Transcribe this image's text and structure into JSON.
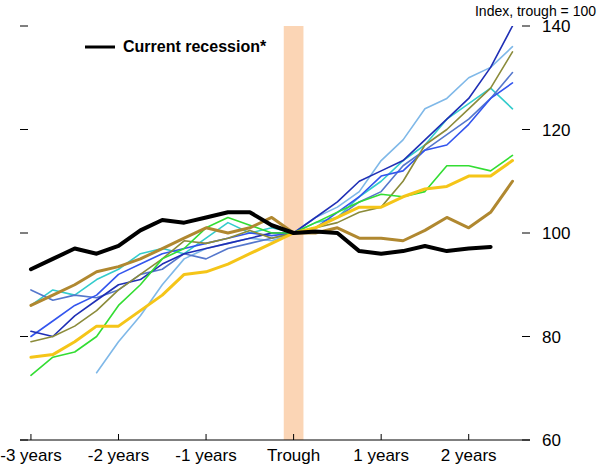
{
  "chart_data": {
    "type": "line",
    "title": "Index, trough = 100",
    "x": [
      -12,
      -11,
      -10,
      -9,
      -8,
      -7,
      -6,
      -5,
      -4,
      -3,
      -2,
      -1,
      0,
      1,
      2,
      3,
      4,
      5,
      6,
      7,
      8,
      9,
      10
    ],
    "xlim": [
      -12.5,
      10.8
    ],
    "xticks": [
      {
        "value": -12,
        "label": "-3 years"
      },
      {
        "value": -8,
        "label": "-2 years"
      },
      {
        "value": -4,
        "label": "-1 years"
      },
      {
        "value": 0,
        "label": "Trough"
      },
      {
        "value": 4,
        "label": "1 years"
      },
      {
        "value": 8,
        "label": "2 years"
      }
    ],
    "ylim": [
      60,
      140
    ],
    "yticks": [
      60,
      80,
      100,
      120,
      140
    ],
    "grid": false,
    "legend": "upper left",
    "shaded_regions": [
      {
        "start": -0.45,
        "end": 0.45,
        "color": "#fbd5b5"
      }
    ],
    "series": [
      {
        "color": "#33cccc",
        "values": [
          86,
          89,
          88,
          91,
          93,
          96,
          97,
          96,
          99,
          102,
          100,
          101,
          100,
          102,
          103,
          107,
          110,
          114,
          117,
          122,
          125,
          128,
          124
        ]
      },
      {
        "color": "#7fb8e8",
        "values": [
          null,
          null,
          null,
          73,
          79,
          84,
          90,
          95,
          97,
          98,
          99,
          98.5,
          100,
          103,
          105,
          108,
          114,
          118,
          124,
          126,
          130,
          132,
          136
        ]
      },
      {
        "color": "#5577cc",
        "values": [
          89,
          87,
          88,
          87.5,
          89,
          92,
          93,
          96,
          95,
          97,
          98,
          99,
          100,
          101,
          103,
          106,
          108,
          113,
          116,
          119,
          122,
          126,
          131
        ]
      },
      {
        "color": "#3355ee",
        "values": [
          80,
          83,
          86,
          88,
          92,
          94,
          96,
          97,
          98,
          99,
          100,
          99.5,
          100,
          101,
          104,
          107,
          111,
          112,
          116,
          117,
          121,
          126,
          129
        ]
      },
      {
        "color": "#1f2fb5",
        "values": [
          81,
          80,
          84,
          87,
          90,
          91,
          94,
          96,
          97,
          98,
          99,
          100,
          100,
          103,
          106,
          110,
          112,
          114,
          118,
          122,
          126,
          132,
          140
        ]
      },
      {
        "color": "#8b8b3a",
        "values": [
          79,
          80,
          82,
          85,
          89,
          92,
          95,
          98.5,
          98,
          99,
          100.5,
          99,
          100,
          101,
          102,
          104,
          105,
          110,
          117,
          120,
          124,
          128,
          135
        ]
      },
      {
        "color": "#33dd33",
        "values": [
          72.5,
          76,
          77,
          80,
          86,
          90,
          95,
          97,
          101,
          103,
          101.5,
          100,
          100,
          102,
          104,
          106,
          107.5,
          107,
          108,
          113,
          113,
          112,
          115
        ]
      },
      {
        "color": "#b08830",
        "values": [
          86,
          88,
          90,
          92.5,
          93.5,
          95,
          97,
          99,
          101,
          100,
          101,
          103,
          100,
          100,
          101,
          99,
          99,
          98.5,
          100.5,
          103,
          101,
          104,
          110
        ]
      },
      {
        "color": "#f5c518",
        "values": [
          76,
          76.5,
          79,
          82,
          82,
          85,
          88,
          92,
          92.5,
          94,
          96,
          98,
          100,
          101,
          103,
          105,
          105,
          107,
          108.5,
          109,
          111,
          111,
          114
        ]
      },
      {
        "name": "Current recession*",
        "color": "#000000",
        "values": [
          93,
          95,
          97,
          96,
          97.5,
          100.5,
          102.5,
          102,
          103,
          104,
          104,
          101.5,
          100,
          100.3,
          100,
          96.5,
          96,
          96.5,
          97.5,
          96.5,
          97,
          97.3,
          null
        ]
      }
    ]
  }
}
